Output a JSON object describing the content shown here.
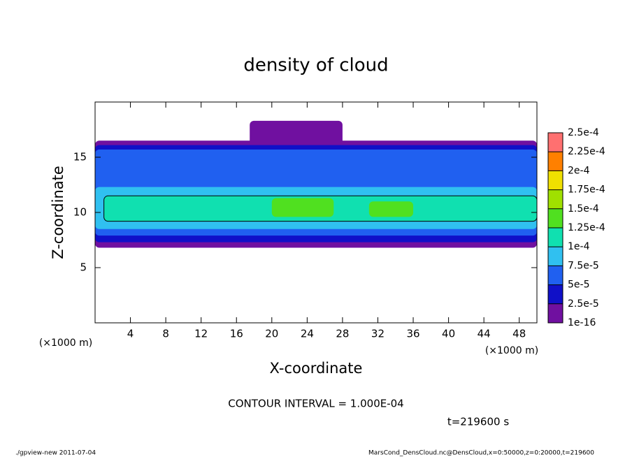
{
  "chart_data": {
    "type": "contour",
    "title": "density of cloud",
    "xlabel": "X-coordinate",
    "ylabel": "Z-coordinate",
    "x_unit": "(×1000 m)",
    "y_unit": "(×1000 m)",
    "xlim": [
      0,
      50
    ],
    "ylim": [
      0,
      20
    ],
    "xticks": [
      4,
      8,
      12,
      16,
      20,
      24,
      28,
      32,
      36,
      40,
      44,
      48
    ],
    "yticks": [
      5,
      10,
      15
    ],
    "colorbar": {
      "levels": [
        {
          "value": 1e-16,
          "label": "1e-16"
        },
        {
          "value": 2.5e-05,
          "label": "2.5e-5"
        },
        {
          "value": 5e-05,
          "label": "5e-5"
        },
        {
          "value": 7.5e-05,
          "label": "7.5e-5"
        },
        {
          "value": 0.0001,
          "label": "1e-4"
        },
        {
          "value": 0.000125,
          "label": "1.25e-4"
        },
        {
          "value": 0.00015,
          "label": "1.5e-4"
        },
        {
          "value": 0.000175,
          "label": "1.75e-4"
        },
        {
          "value": 0.0002,
          "label": "2e-4"
        },
        {
          "value": 0.000225,
          "label": "2.25e-4"
        },
        {
          "value": 0.00025,
          "label": "2.5e-4"
        }
      ],
      "colors": [
        "#7010a0",
        "#1010c8",
        "#2060f0",
        "#30c0f0",
        "#10e0b0",
        "#50e020",
        "#a0e000",
        "#f0e000",
        "#ff8000",
        "#ff7070"
      ]
    },
    "field": [
      {
        "level": 1e-16,
        "x": [
          0,
          50
        ],
        "z": [
          6.8,
          16.5
        ]
      },
      {
        "level": 1e-16,
        "x": [
          17.5,
          28
        ],
        "z": [
          15,
          18.3
        ]
      },
      {
        "level": 2.5e-05,
        "x": [
          0,
          50
        ],
        "z": [
          7.3,
          16.1
        ]
      },
      {
        "level": 5e-05,
        "x": [
          0,
          50
        ],
        "z": [
          7.9,
          15.7
        ]
      },
      {
        "level": 7.5e-05,
        "x": [
          0,
          50
        ],
        "z": [
          8.5,
          12.3
        ]
      },
      {
        "level": 0.0001,
        "x": [
          1,
          50
        ],
        "z": [
          9.2,
          11.5
        ]
      },
      {
        "level": 0.000125,
        "x": [
          20,
          27
        ],
        "z": [
          9.6,
          11.3
        ]
      },
      {
        "level": 0.000125,
        "x": [
          31,
          36
        ],
        "z": [
          9.6,
          11
        ]
      }
    ],
    "contour_interval": "CONTOUR INTERVAL = 1.000E-04",
    "time_label": "t=219600 s",
    "footer_left": "./gpview-new  2011-07-04",
    "footer_right": "MarsCond_DensCloud.nc@DensCloud,x=0:50000,z=0:20000,t=219600"
  }
}
